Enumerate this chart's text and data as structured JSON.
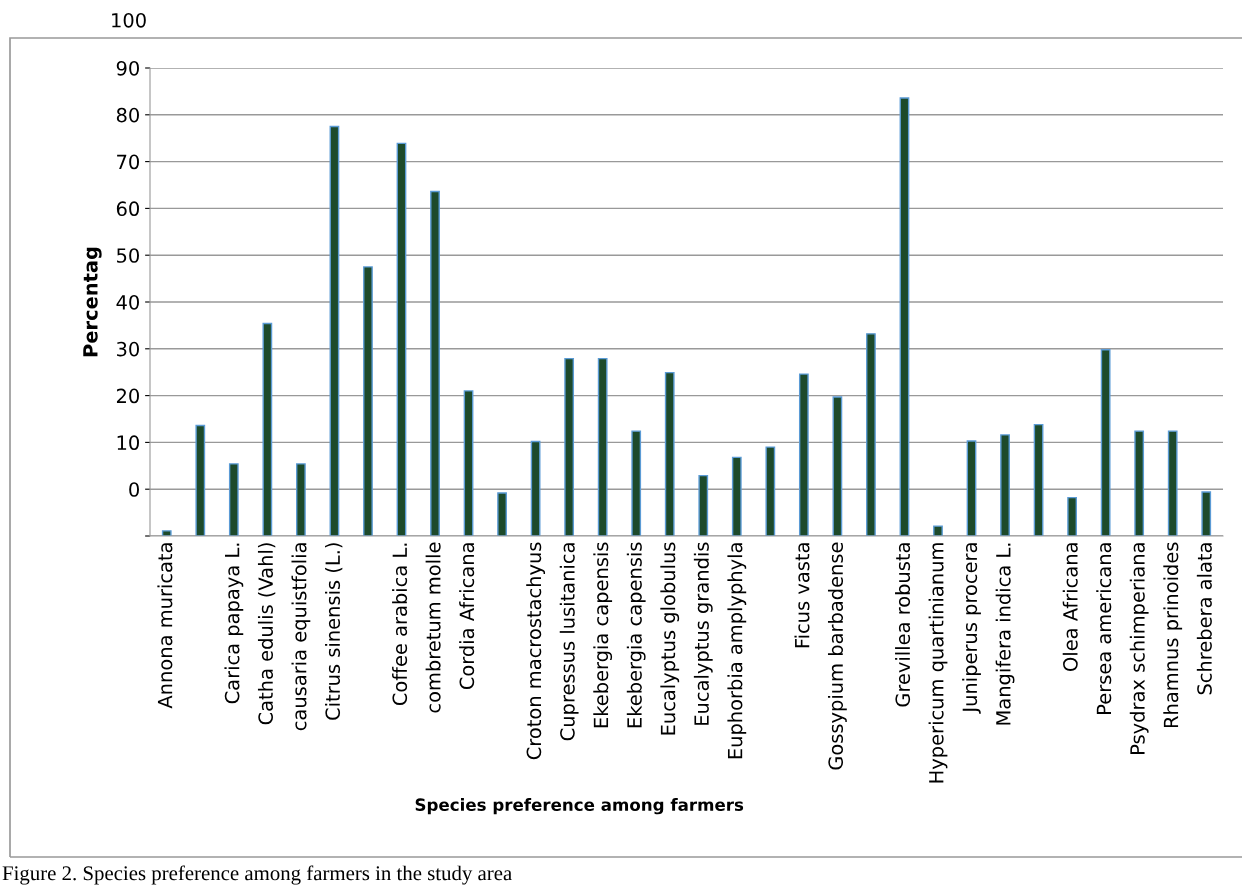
{
  "chart_data": {
    "type": "bar",
    "xlabel": "Species preference among farmers",
    "ylabel": "Percentag",
    "annotations": [
      "100",
      "Figure 2. Species preference among farmers in the study area"
    ],
    "categories": [
      "Annona muricata",
      null,
      "Carica papaya L.",
      "Catha edulis (Vahl)",
      "causaria equistfolia",
      "Citrus sinensis (L.)",
      null,
      "Coffee arabica L.",
      "combretum molle",
      "Cordia Africana",
      null,
      "Croton macrostachyus",
      "Cupressus lusitanica",
      "Ekebergia capensis",
      "Ekebergia capensis",
      "Eucalyptus globulus",
      "Eucalyptus grandis",
      "Euphorbia amplyphyla",
      null,
      "Ficus vasta",
      "Gossypium barbadense",
      null,
      "Grevillea robusta",
      "Hypericum quartinianum",
      "Juniperus procera",
      "Mangifera indica L.",
      null,
      "Olea Africana",
      "Persea americana",
      "Psydrax schimperiana",
      "Rhamnus prinoides",
      "Schrebera alata"
    ],
    "values": [
      1.1,
      23.6,
      15.4,
      45.4,
      15.4,
      87.5,
      57.5,
      83.9,
      73.6,
      31.0,
      9.2,
      20.2,
      37.9,
      37.9,
      22.4,
      34.9,
      12.9,
      16.8,
      19.0,
      34.6,
      29.7,
      43.2,
      93.6,
      2.1,
      20.3,
      21.6,
      23.8,
      8.2,
      39.8,
      22.4,
      22.4,
      9.4
    ],
    "base": [
      -10,
      -10,
      -10,
      -10,
      -10,
      -10,
      -10,
      -10,
      -10,
      -10,
      -10,
      -10,
      -10,
      -10,
      -10,
      -10,
      -10,
      -10,
      -10,
      -10,
      -10,
      -10,
      -10,
      -10,
      -10,
      -10,
      -10,
      -10,
      -10,
      -10,
      -10,
      -10
    ],
    "color": "#1d4a2b",
    "ylim": [
      -10,
      90
    ],
    "yticks": [
      {
        "value": -10,
        "label": null
      },
      0,
      10,
      20,
      30,
      40,
      50,
      60,
      70,
      80,
      90
    ],
    "grid": "y"
  }
}
